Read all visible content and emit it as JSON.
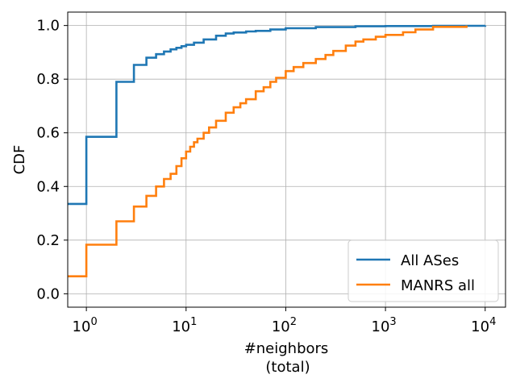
{
  "chart_data": {
    "type": "line",
    "title": "",
    "xlabel": [
      "#neighbors",
      "(total)"
    ],
    "ylabel": "CDF",
    "xscale": "log",
    "xlim": [
      0.65,
      16000
    ],
    "ylim": [
      -0.05,
      1.05
    ],
    "grid": true,
    "legend_position": "bottom-right",
    "x_ticks": [
      {
        "value": 1,
        "base": "10",
        "exp": "0"
      },
      {
        "value": 10,
        "base": "10",
        "exp": "1"
      },
      {
        "value": 100,
        "base": "10",
        "exp": "2"
      },
      {
        "value": 1000,
        "base": "10",
        "exp": "3"
      },
      {
        "value": 10000,
        "base": "10",
        "exp": "4"
      }
    ],
    "y_ticks": [
      {
        "value": 0.0,
        "label": "0.0"
      },
      {
        "value": 0.2,
        "label": "0.2"
      },
      {
        "value": 0.4,
        "label": "0.4"
      },
      {
        "value": 0.6,
        "label": "0.6"
      },
      {
        "value": 0.8,
        "label": "0.8"
      },
      {
        "value": 1.0,
        "label": "1.0"
      }
    ],
    "series": [
      {
        "name": "All ASes",
        "color": "#1f77b4",
        "points": [
          [
            0.65,
            0.335
          ],
          [
            1,
            0.585
          ],
          [
            2,
            0.79
          ],
          [
            3,
            0.853
          ],
          [
            4,
            0.88
          ],
          [
            5,
            0.893
          ],
          [
            6,
            0.903
          ],
          [
            7,
            0.911
          ],
          [
            8,
            0.917
          ],
          [
            9,
            0.923
          ],
          [
            10,
            0.928
          ],
          [
            12,
            0.936
          ],
          [
            15,
            0.948
          ],
          [
            20,
            0.962
          ],
          [
            25,
            0.97
          ],
          [
            30,
            0.974
          ],
          [
            40,
            0.978
          ],
          [
            50,
            0.98
          ],
          [
            70,
            0.985
          ],
          [
            100,
            0.99
          ],
          [
            200,
            0.994
          ],
          [
            500,
            0.997
          ],
          [
            1000,
            0.998
          ],
          [
            3000,
            0.999
          ],
          [
            10000,
            1.0
          ]
        ]
      },
      {
        "name": "MANRS all",
        "color": "#ff7f0e",
        "points": [
          [
            0.65,
            0.065
          ],
          [
            1,
            0.183
          ],
          [
            2,
            0.27
          ],
          [
            3,
            0.325
          ],
          [
            4,
            0.365
          ],
          [
            5,
            0.4
          ],
          [
            6,
            0.428
          ],
          [
            7,
            0.447
          ],
          [
            8,
            0.476
          ],
          [
            9,
            0.505
          ],
          [
            10,
            0.53
          ],
          [
            11,
            0.548
          ],
          [
            12,
            0.565
          ],
          [
            13,
            0.578
          ],
          [
            15,
            0.6
          ],
          [
            17,
            0.62
          ],
          [
            20,
            0.645
          ],
          [
            25,
            0.675
          ],
          [
            30,
            0.695
          ],
          [
            35,
            0.71
          ],
          [
            40,
            0.725
          ],
          [
            50,
            0.755
          ],
          [
            60,
            0.77
          ],
          [
            70,
            0.79
          ],
          [
            80,
            0.805
          ],
          [
            100,
            0.83
          ],
          [
            120,
            0.845
          ],
          [
            150,
            0.86
          ],
          [
            200,
            0.875
          ],
          [
            250,
            0.89
          ],
          [
            300,
            0.905
          ],
          [
            400,
            0.925
          ],
          [
            500,
            0.94
          ],
          [
            600,
            0.948
          ],
          [
            800,
            0.958
          ],
          [
            1000,
            0.965
          ],
          [
            1500,
            0.975
          ],
          [
            2000,
            0.985
          ],
          [
            3000,
            0.995
          ],
          [
            6500,
            1.0
          ]
        ]
      }
    ]
  }
}
